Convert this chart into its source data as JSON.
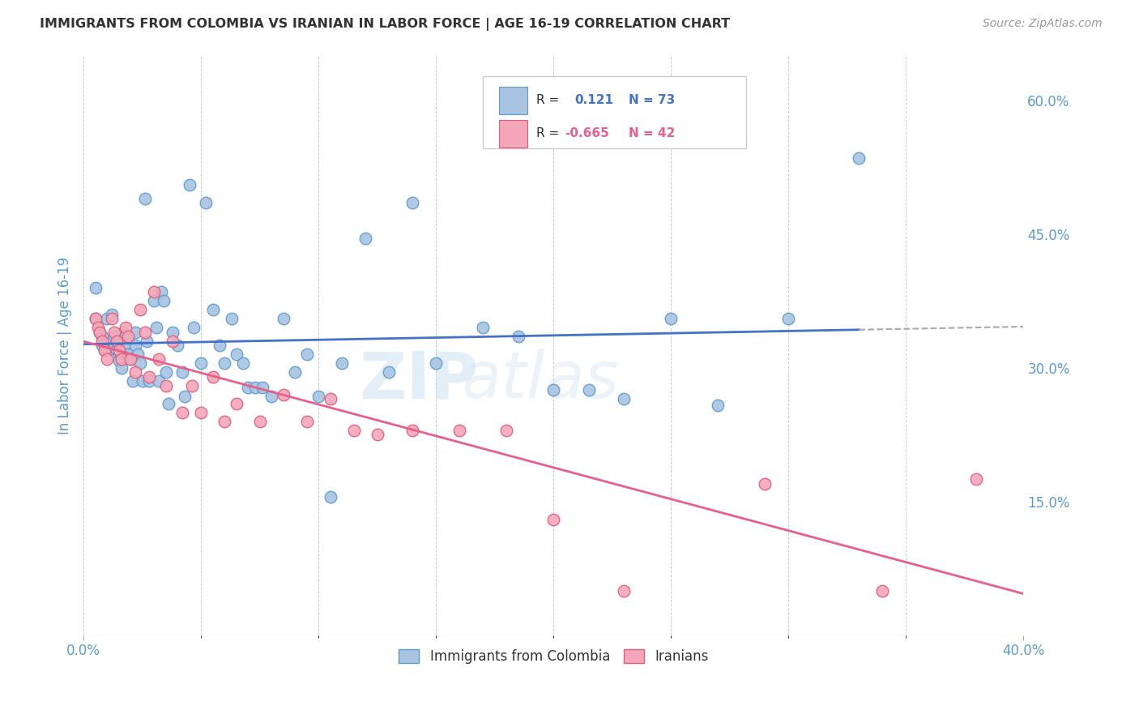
{
  "title": "IMMIGRANTS FROM COLOMBIA VS IRANIAN IN LABOR FORCE | AGE 16-19 CORRELATION CHART",
  "source": "Source: ZipAtlas.com",
  "ylabel": "In Labor Force | Age 16-19",
  "xlim": [
    0.0,
    0.4
  ],
  "ylim": [
    0.0,
    0.65
  ],
  "y_ticks_right": [
    0.15,
    0.3,
    0.45,
    0.6
  ],
  "y_tick_labels_right": [
    "15.0%",
    "30.0%",
    "45.0%",
    "60.0%"
  ],
  "colombia_color": "#a8c4e0",
  "colombia_edge_color": "#5b9bd5",
  "iran_color": "#f4a7b9",
  "iran_edge_color": "#e05c7a",
  "trendline_colombia_color": "#4472c4",
  "trendline_iran_color": "#e8608a",
  "r_colombia": "0.121",
  "n_colombia": "73",
  "r_iran": "-0.665",
  "n_iran": "42",
  "colombia_x": [
    0.005,
    0.005,
    0.007,
    0.008,
    0.008,
    0.009,
    0.01,
    0.01,
    0.012,
    0.013,
    0.013,
    0.014,
    0.015,
    0.015,
    0.016,
    0.017,
    0.018,
    0.018,
    0.019,
    0.02,
    0.021,
    0.022,
    0.022,
    0.023,
    0.024,
    0.025,
    0.026,
    0.027,
    0.028,
    0.03,
    0.031,
    0.032,
    0.033,
    0.034,
    0.035,
    0.036,
    0.038,
    0.04,
    0.042,
    0.043,
    0.045,
    0.047,
    0.05,
    0.052,
    0.055,
    0.058,
    0.06,
    0.063,
    0.065,
    0.068,
    0.07,
    0.073,
    0.076,
    0.08,
    0.085,
    0.09,
    0.095,
    0.1,
    0.105,
    0.11,
    0.12,
    0.13,
    0.14,
    0.15,
    0.17,
    0.185,
    0.2,
    0.215,
    0.23,
    0.25,
    0.27,
    0.3,
    0.33
  ],
  "colombia_y": [
    0.39,
    0.355,
    0.34,
    0.335,
    0.325,
    0.32,
    0.355,
    0.32,
    0.36,
    0.335,
    0.325,
    0.32,
    0.315,
    0.308,
    0.3,
    0.34,
    0.335,
    0.325,
    0.315,
    0.31,
    0.285,
    0.34,
    0.325,
    0.315,
    0.305,
    0.285,
    0.49,
    0.33,
    0.285,
    0.375,
    0.345,
    0.285,
    0.385,
    0.375,
    0.295,
    0.26,
    0.34,
    0.325,
    0.295,
    0.268,
    0.505,
    0.345,
    0.305,
    0.485,
    0.365,
    0.325,
    0.305,
    0.355,
    0.315,
    0.305,
    0.278,
    0.278,
    0.278,
    0.268,
    0.355,
    0.295,
    0.315,
    0.268,
    0.155,
    0.305,
    0.445,
    0.295,
    0.485,
    0.305,
    0.345,
    0.335,
    0.275,
    0.275,
    0.265,
    0.355,
    0.258,
    0.355,
    0.535
  ],
  "iran_x": [
    0.005,
    0.006,
    0.007,
    0.008,
    0.009,
    0.01,
    0.012,
    0.013,
    0.014,
    0.015,
    0.016,
    0.018,
    0.019,
    0.02,
    0.022,
    0.024,
    0.026,
    0.028,
    0.03,
    0.032,
    0.035,
    0.038,
    0.042,
    0.046,
    0.05,
    0.055,
    0.06,
    0.065,
    0.075,
    0.085,
    0.095,
    0.105,
    0.115,
    0.125,
    0.14,
    0.16,
    0.18,
    0.2,
    0.23,
    0.29,
    0.34,
    0.38
  ],
  "iran_y": [
    0.355,
    0.345,
    0.34,
    0.33,
    0.32,
    0.31,
    0.355,
    0.34,
    0.33,
    0.32,
    0.31,
    0.345,
    0.335,
    0.31,
    0.295,
    0.365,
    0.34,
    0.29,
    0.385,
    0.31,
    0.28,
    0.33,
    0.25,
    0.28,
    0.25,
    0.29,
    0.24,
    0.26,
    0.24,
    0.27,
    0.24,
    0.265,
    0.23,
    0.225,
    0.23,
    0.23,
    0.23,
    0.13,
    0.05,
    0.17,
    0.05,
    0.175
  ],
  "watermark_zip": "ZIP",
  "watermark_atlas": "atlas",
  "background_color": "#ffffff",
  "grid_color": "#cccccc",
  "title_color": "#333333",
  "tick_color": "#5b9bd5"
}
